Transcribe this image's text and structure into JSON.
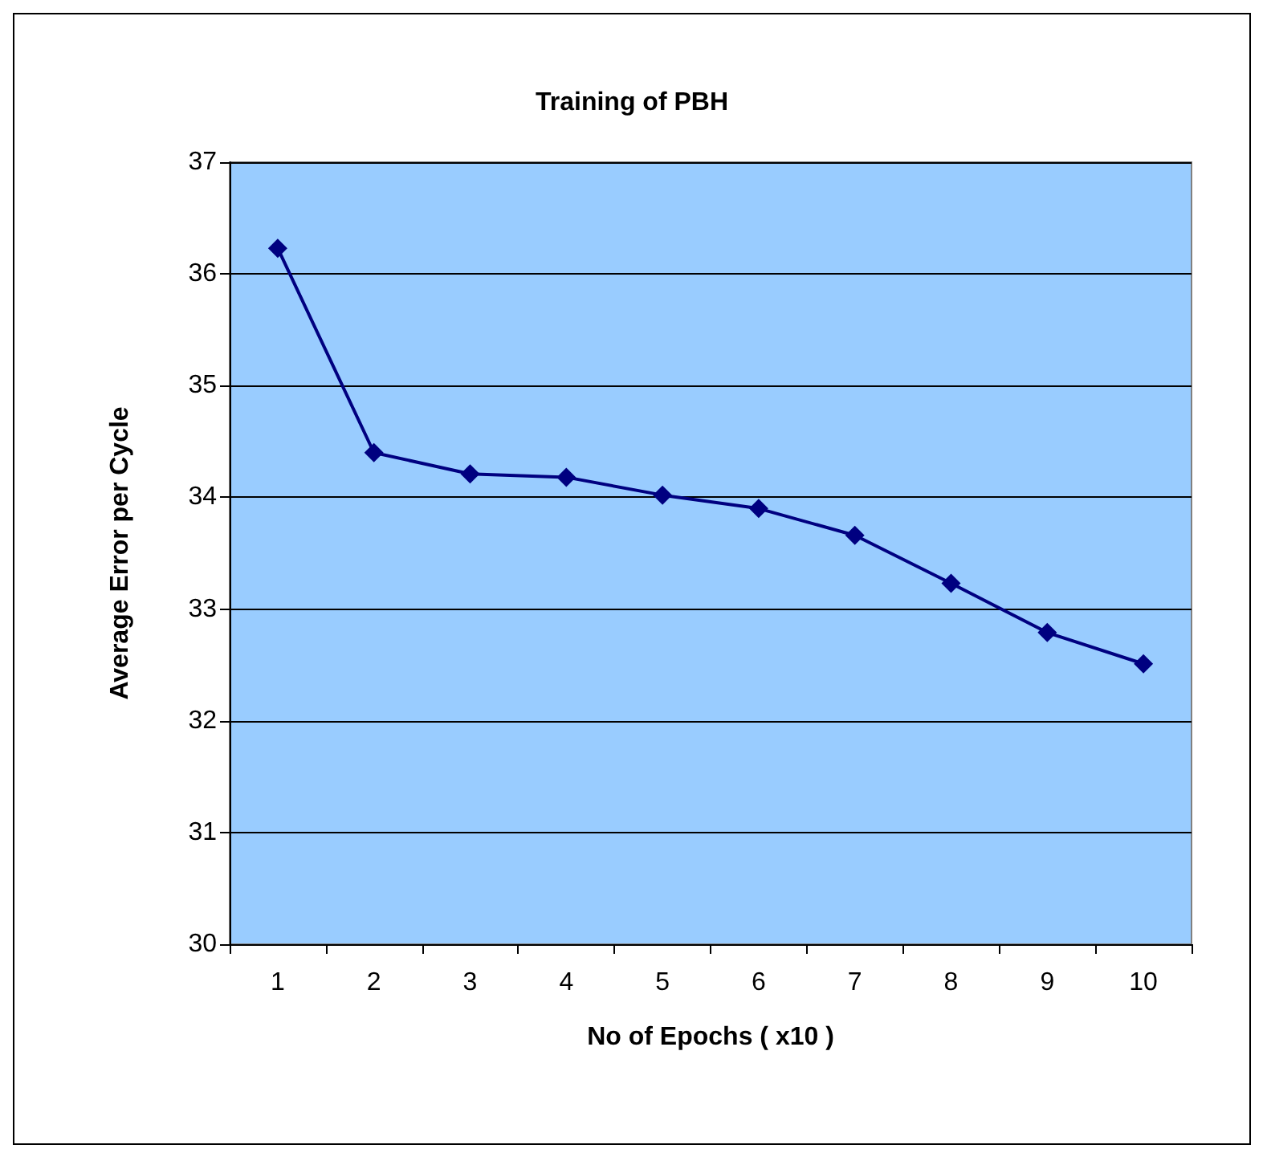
{
  "chart_data": {
    "type": "line",
    "title": "Training of PBH",
    "xlabel": "No of Epochs ( x10 )",
    "ylabel": "Average Error per Cycle",
    "categories": [
      "1",
      "2",
      "3",
      "4",
      "5",
      "6",
      "7",
      "8",
      "9",
      "10"
    ],
    "series": [
      {
        "color": "#000080",
        "values": [
          36.23,
          34.4,
          34.21,
          34.18,
          34.02,
          33.9,
          33.66,
          33.23,
          32.79,
          32.51
        ]
      }
    ],
    "ylim": [
      30,
      37
    ],
    "yticks": [
      30,
      31,
      32,
      33,
      34,
      35,
      36,
      37
    ],
    "grid": "y",
    "marker": "diamond",
    "line_style": "solid"
  }
}
